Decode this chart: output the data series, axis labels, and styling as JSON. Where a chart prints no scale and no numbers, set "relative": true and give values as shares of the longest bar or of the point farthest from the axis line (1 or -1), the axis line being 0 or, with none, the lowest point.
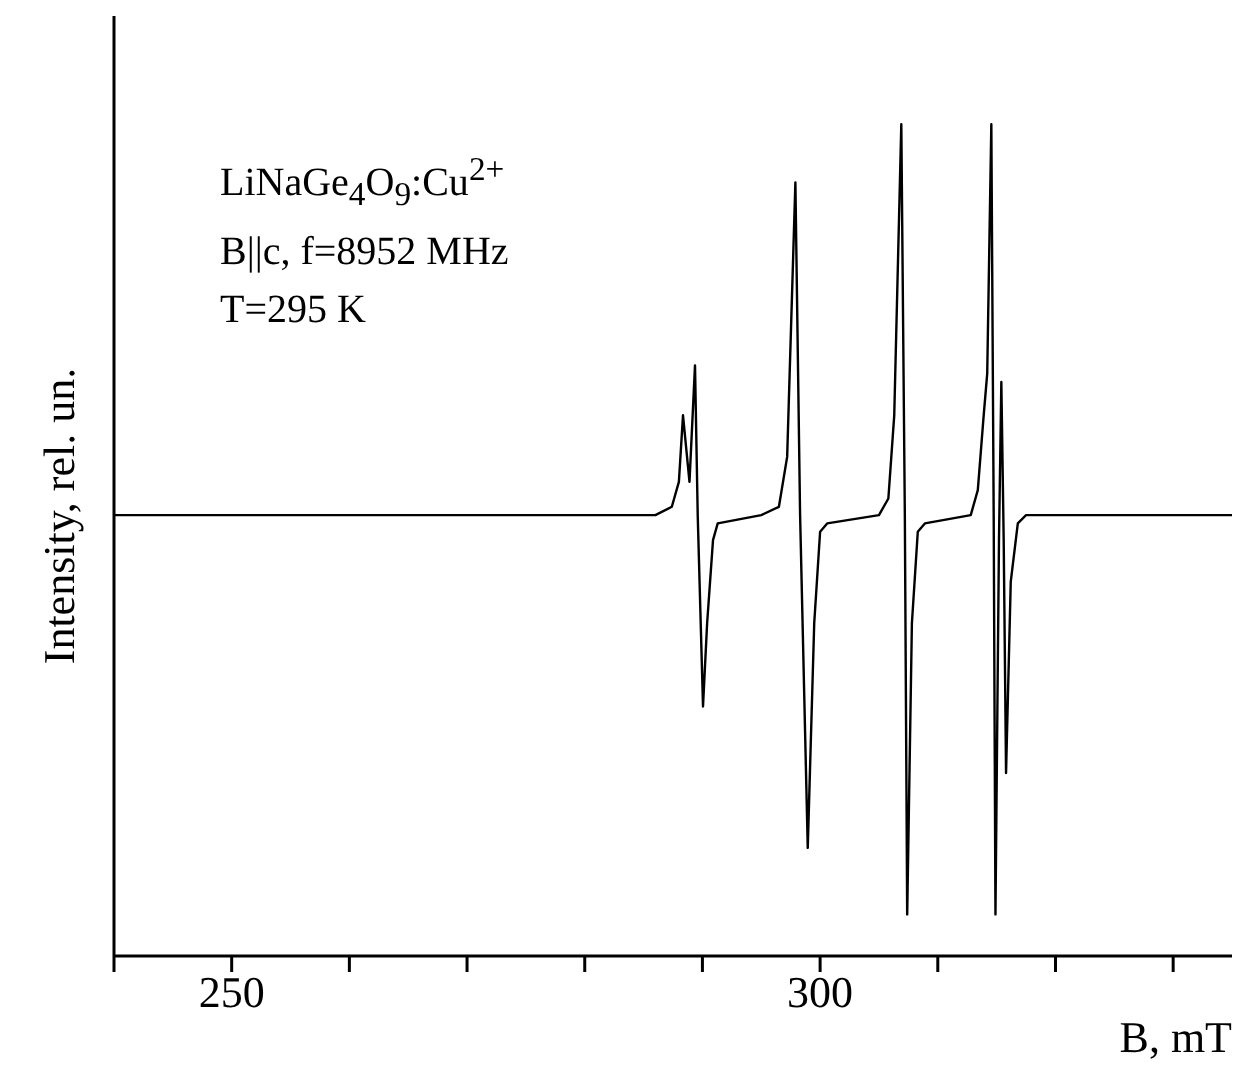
{
  "chart_data": {
    "type": "line",
    "relative": true,
    "xlabel": "B, mT",
    "ylabel": "Intensity, rel. un.",
    "annotations": [
      "LiNaGe$_{4}$O$_{9}$:Cu$^{2+}$",
      "B||c, f=8952 MHz",
      "T=295 K"
    ],
    "xlim": [
      240,
      335
    ],
    "xticks": [
      {
        "value": 240,
        "label": null
      },
      250,
      {
        "value": 260,
        "label": null
      },
      {
        "value": 270,
        "label": null
      },
      {
        "value": 280,
        "label": null
      },
      {
        "value": 290,
        "label": null
      },
      300,
      {
        "value": 310,
        "label": null
      },
      {
        "value": 320,
        "label": null
      },
      {
        "value": 330,
        "label": null
      }
    ],
    "x": [
      240,
      286,
      287.4,
      288.0,
      288.35,
      288.9,
      289.37,
      289.6,
      290.05,
      290.4,
      290.9,
      291.3,
      295,
      296.5,
      297.2,
      297.9,
      298.3,
      298.95,
      299.5,
      300.0,
      300.6,
      305,
      305.8,
      306.3,
      306.9,
      307.2,
      307.4,
      307.8,
      308.3,
      308.9,
      312.8,
      313.4,
      313.9,
      314.2,
      314.55,
      314.75,
      314.9,
      315.2,
      315.4,
      315.6,
      315.8,
      316.2,
      316.8,
      317.5,
      335
    ],
    "series": [
      {
        "color": "#000000",
        "values": [
          0.53,
          0.53,
          0.54,
          0.57,
          0.65,
          0.57,
          0.71,
          0.53,
          0.3,
          0.4,
          0.5,
          0.52,
          0.53,
          0.54,
          0.6,
          0.93,
          0.53,
          0.13,
          0.4,
          0.51,
          0.52,
          0.53,
          0.55,
          0.65,
          1,
          0.53,
          0.05,
          0.4,
          0.51,
          0.52,
          0.53,
          0.56,
          0.65,
          0.7,
          1,
          0.53,
          0.05,
          0.5,
          0.69,
          0.5,
          0.22,
          0.45,
          0.52,
          0.53,
          0.53
        ]
      }
    ]
  }
}
